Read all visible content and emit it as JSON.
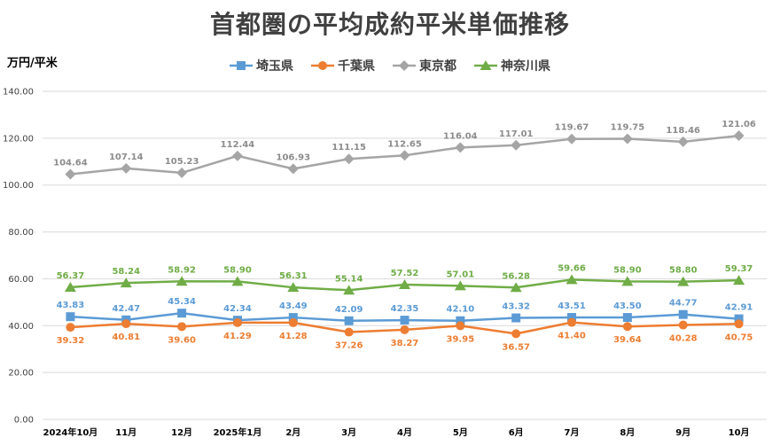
{
  "chart_data": {
    "type": "line",
    "title": "首都圏の平均成約平米単価推移",
    "ylabel": "万円/平米",
    "ylim": [
      0,
      140
    ],
    "yticks": [
      "0.00",
      "20.00",
      "40.00",
      "60.00",
      "80.00",
      "100.00",
      "120.00",
      "140.00"
    ],
    "categories": [
      "2024年10月",
      "11月",
      "12月",
      "2025年1月",
      "2月",
      "3月",
      "4月",
      "5月",
      "6月",
      "7月",
      "8月",
      "9月",
      "10月"
    ],
    "legend_position": "top-center",
    "series": [
      {
        "name": "埼玉県",
        "color": "#5b9bd5",
        "marker": "square",
        "label_pos": "above",
        "values": [
          43.83,
          42.47,
          45.34,
          42.34,
          43.49,
          42.09,
          42.35,
          42.1,
          43.32,
          43.51,
          43.5,
          44.77,
          42.91
        ],
        "labels": [
          "43.83",
          "42.47",
          "45.34",
          "42.34",
          "43.49",
          "42.09",
          "42.35",
          "42.10",
          "43.32",
          "43.51",
          "43.50",
          "44.77",
          "42.91"
        ]
      },
      {
        "name": "千葉県",
        "color": "#ed7d31",
        "marker": "circle",
        "label_pos": "below",
        "values": [
          39.32,
          40.81,
          39.6,
          41.29,
          41.28,
          37.26,
          38.27,
          39.95,
          36.57,
          41.4,
          39.64,
          40.28,
          40.75
        ],
        "labels": [
          "39.32",
          "40.81",
          "39.60",
          "41.29",
          "41.28",
          "37.26",
          "38.27",
          "39.95",
          "36.57",
          "41.40",
          "39.64",
          "40.28",
          "40.75"
        ]
      },
      {
        "name": "東京都",
        "color": "#a5a5a5",
        "marker": "diamond",
        "label_pos": "above",
        "values": [
          104.64,
          107.14,
          105.23,
          112.44,
          106.93,
          111.15,
          112.65,
          116.04,
          117.01,
          119.67,
          119.75,
          118.46,
          121.06
        ],
        "labels": [
          "104.64",
          "107.14",
          "105.23",
          "112.44",
          "106.93",
          "111.15",
          "112.65",
          "116.04",
          "117.01",
          "119.67",
          "119.75",
          "118.46",
          "121.06"
        ]
      },
      {
        "name": "神奈川県",
        "color": "#70ad47",
        "marker": "triangle",
        "label_pos": "above",
        "values": [
          56.37,
          58.24,
          58.92,
          58.9,
          56.31,
          55.14,
          57.52,
          57.01,
          56.28,
          59.66,
          58.9,
          58.8,
          59.37
        ],
        "labels": [
          "56.37",
          "58.24",
          "58.92",
          "58.90",
          "56.31",
          "55.14",
          "57.52",
          "57.01",
          "56.28",
          "59.66",
          "58.90",
          "58.80",
          "59.37"
        ]
      }
    ]
  }
}
